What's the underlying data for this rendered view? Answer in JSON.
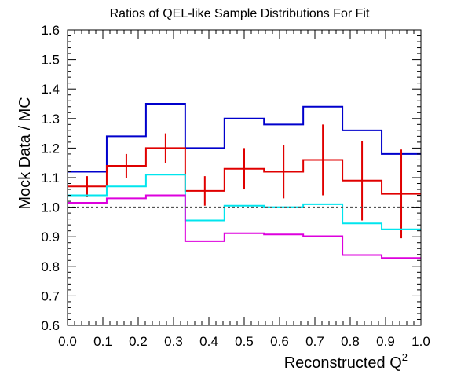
{
  "chart_data": {
    "type": "line",
    "title": "Ratios of QEL-like Sample Distributions For Fit",
    "xlabel": "Reconstructed Q",
    "xlabel_sup": "2",
    "ylabel": "Mock Data / MC",
    "xlim": [
      0.0,
      1.0
    ],
    "ylim": [
      0.6,
      1.6
    ],
    "x_ticks": [
      "0.0",
      "0.1",
      "0.2",
      "0.3",
      "0.4",
      "0.5",
      "0.6",
      "0.7",
      "0.8",
      "0.9",
      "1.0"
    ],
    "y_ticks": [
      "0.6",
      "0.7",
      "0.8",
      "0.9",
      "1.0",
      "1.1",
      "1.2",
      "1.3",
      "1.4",
      "1.5",
      "1.6"
    ],
    "bin_edges": [
      0.0,
      0.111,
      0.222,
      0.333,
      0.444,
      0.556,
      0.667,
      0.778,
      0.889,
      1.0
    ],
    "reference_line": 1.0,
    "series": [
      {
        "color": "#0000cc",
        "style": "step",
        "values": [
          1.12,
          1.24,
          1.35,
          1.2,
          1.3,
          1.28,
          1.34,
          1.26,
          1.18
        ]
      },
      {
        "color": "#e00000",
        "style": "step-errorbar",
        "values": [
          1.07,
          1.14,
          1.2,
          1.055,
          1.13,
          1.12,
          1.16,
          1.09,
          1.045
        ],
        "errors": [
          0.035,
          0.04,
          0.05,
          0.05,
          0.07,
          0.09,
          0.12,
          0.135,
          0.15
        ]
      },
      {
        "color": "#00e5ee",
        "style": "step",
        "values": [
          1.04,
          1.07,
          1.11,
          0.955,
          1.005,
          1.0,
          1.01,
          0.945,
          0.925
        ]
      },
      {
        "color": "#dd00dd",
        "style": "step",
        "values": [
          1.015,
          1.03,
          1.04,
          0.885,
          0.912,
          0.908,
          0.902,
          0.838,
          0.828
        ]
      }
    ]
  }
}
